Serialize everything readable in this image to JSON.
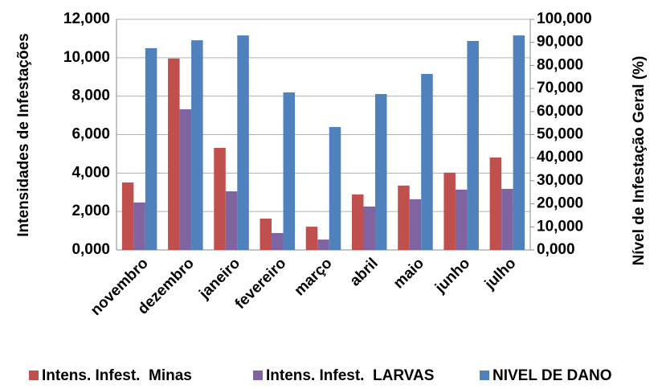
{
  "chart_data": {
    "type": "bar",
    "categories": [
      "novembro",
      "dezembro",
      "janeiro",
      "fevereiro",
      "março",
      "abril",
      "maio",
      "junho",
      "julho"
    ],
    "series": [
      {
        "name": "Intens. Infest.  Minas",
        "color": "#c0504d",
        "values": [
          3.51,
          9.96,
          5.31,
          1.63,
          1.21,
          2.89,
          3.35,
          4.02,
          4.81
        ]
      },
      {
        "name": "Intens. Infest.  LARVAS",
        "color": "#8064a2",
        "values": [
          2.47,
          7.32,
          3.05,
          0.88,
          0.54,
          2.26,
          2.64,
          3.14,
          3.18
        ]
      },
      {
        "name": "NIVEL DE DANO",
        "color": "#4f81bd",
        "axis": "y2",
        "values": [
          87.5,
          90.9,
          93.0,
          68.3,
          53.3,
          67.6,
          76.3,
          90.6,
          93.0
        ]
      }
    ],
    "y_label": "Intensidades de Infestações",
    "y2_label": "Nível de Infestação Geral (%)",
    "ylim": [
      0,
      12
    ],
    "yticks": [
      {
        "value": 0,
        "label": "0,000"
      },
      {
        "value": 2,
        "label": "2,000"
      },
      {
        "value": 4,
        "label": "4,000"
      },
      {
        "value": 6,
        "label": "6,000"
      },
      {
        "value": 8,
        "label": "8,000"
      },
      {
        "value": 10,
        "label": "10,000"
      },
      {
        "value": 12,
        "label": "12,000"
      }
    ],
    "y2lim": [
      0,
      100
    ],
    "y2ticks": [
      {
        "value": 0,
        "label": "0,000"
      },
      {
        "value": 10,
        "label": "10,000"
      },
      {
        "value": 20,
        "label": "20,000"
      },
      {
        "value": 30,
        "label": "30,000"
      },
      {
        "value": 40,
        "label": "40,000"
      },
      {
        "value": 50,
        "label": "50,000"
      },
      {
        "value": 60,
        "label": "60,000"
      },
      {
        "value": 70,
        "label": "70,000"
      },
      {
        "value": 80,
        "label": "80,000"
      },
      {
        "value": 90,
        "label": "90,000"
      },
      {
        "value": 100,
        "label": "100,000"
      }
    ],
    "grid": true,
    "legend": "bottom"
  }
}
